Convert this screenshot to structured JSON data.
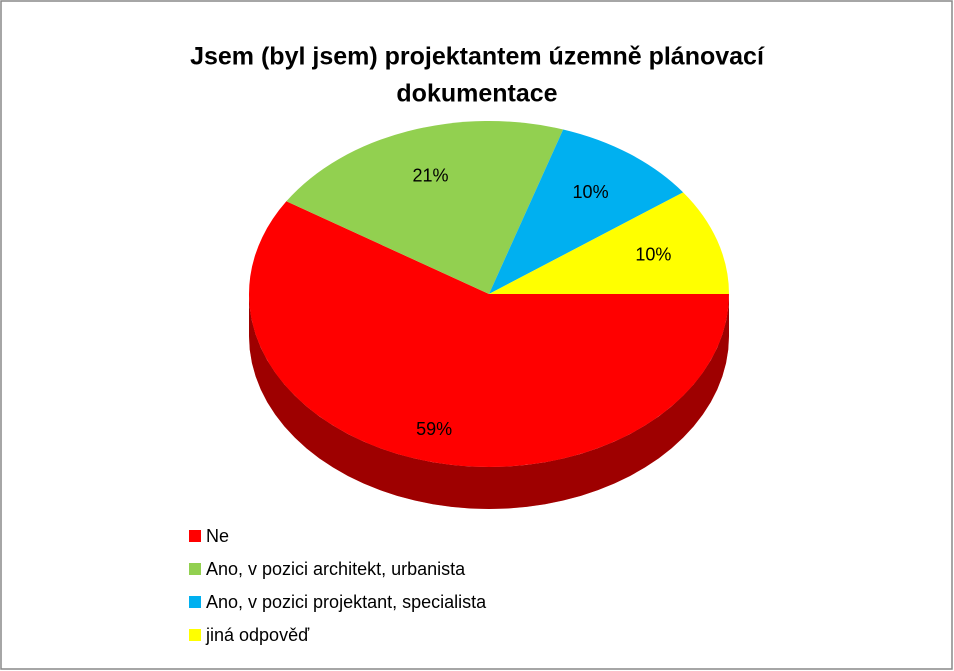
{
  "chart_data": {
    "type": "pie",
    "title": [
      "Jsem (byl jsem) projektantem územně plánovací",
      "dokumentace"
    ],
    "categories": [
      "Ne",
      "Ano, v pozici architekt, urbanista",
      "Ano, v pozici projektant, specialista",
      "jiná odpověď"
    ],
    "values": [
      59,
      21,
      10,
      10
    ],
    "value_labels": [
      "59%",
      "21%",
      "10%",
      "10%"
    ],
    "colors": [
      "#ff0000",
      "#92d050",
      "#00b0f0",
      "#ffff00"
    ],
    "legend": "bottom-left"
  }
}
